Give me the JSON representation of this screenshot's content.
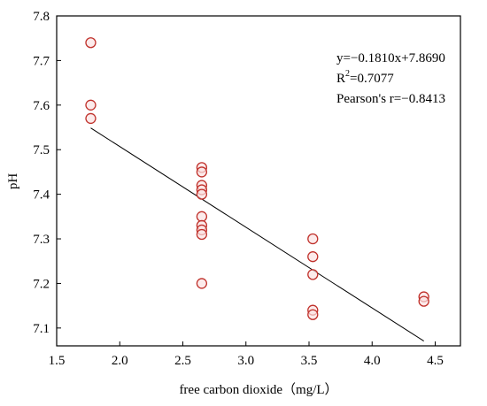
{
  "chart_data": {
    "type": "scatter",
    "xlabel": "free carbon dioxide（mg/L）",
    "ylabel": "pH",
    "xlim": [
      1.5,
      4.7
    ],
    "ylim": [
      7.06,
      7.8
    ],
    "x_ticks": [
      1.5,
      2.0,
      2.5,
      3.0,
      3.5,
      4.0,
      4.5
    ],
    "x_tick_labels": [
      "1.5",
      "2.0",
      "2.5",
      "3.0",
      "3.5",
      "4.0",
      "4.5"
    ],
    "y_ticks": [
      7.1,
      7.2,
      7.3,
      7.4,
      7.5,
      7.6,
      7.7,
      7.8
    ],
    "y_tick_labels": [
      "7.1",
      "7.2",
      "7.3",
      "7.4",
      "7.5",
      "7.6",
      "7.7",
      "7.8"
    ],
    "points": [
      {
        "x": 1.77,
        "y": 7.74
      },
      {
        "x": 1.77,
        "y": 7.6
      },
      {
        "x": 1.77,
        "y": 7.57
      },
      {
        "x": 2.65,
        "y": 7.46
      },
      {
        "x": 2.65,
        "y": 7.45
      },
      {
        "x": 2.65,
        "y": 7.42
      },
      {
        "x": 2.65,
        "y": 7.41
      },
      {
        "x": 2.65,
        "y": 7.4
      },
      {
        "x": 2.65,
        "y": 7.35
      },
      {
        "x": 2.65,
        "y": 7.33
      },
      {
        "x": 2.65,
        "y": 7.32
      },
      {
        "x": 2.65,
        "y": 7.31
      },
      {
        "x": 2.65,
        "y": 7.2
      },
      {
        "x": 3.53,
        "y": 7.3
      },
      {
        "x": 3.53,
        "y": 7.26
      },
      {
        "x": 3.53,
        "y": 7.22
      },
      {
        "x": 3.53,
        "y": 7.14
      },
      {
        "x": 3.53,
        "y": 7.13
      },
      {
        "x": 4.41,
        "y": 7.17
      },
      {
        "x": 4.41,
        "y": 7.16
      }
    ],
    "fit": {
      "slope": -0.181,
      "intercept": 7.869,
      "x_range": [
        1.77,
        4.41
      ]
    },
    "annotation": {
      "equation": "y=−0.1810x+7.8690",
      "r2_prefix": "R",
      "r2_superscript": "2",
      "r2_value": "=0.7077",
      "pearson": "Pearson's r=−0.8413"
    },
    "grid": false,
    "legend": "none",
    "colors": {
      "marker_edge": "#c0312b",
      "marker_fill": "#fbe3e3",
      "fit_line": "#000000"
    }
  }
}
